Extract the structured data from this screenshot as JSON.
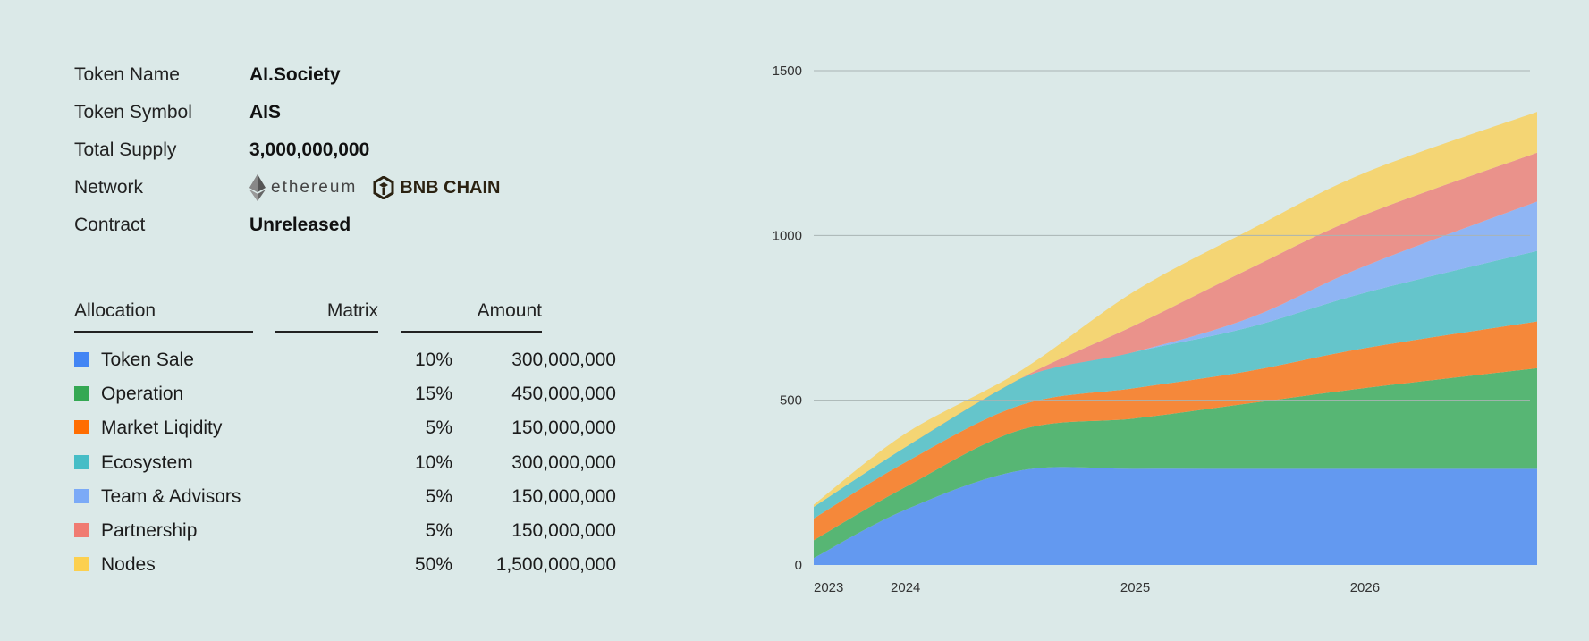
{
  "token_info": [
    {
      "label": "Token Name",
      "value": "AI.Society"
    },
    {
      "label": "Token Symbol",
      "value": "AIS"
    },
    {
      "label": "Total Supply",
      "value": "3,000,000,000"
    },
    {
      "label": "Network",
      "value": ""
    },
    {
      "label": "Contract",
      "value": "Unreleased"
    }
  ],
  "networks": {
    "ethereum": "ethereum",
    "bnb": "BNB CHAIN"
  },
  "table": {
    "headers": {
      "allocation": "Allocation",
      "matrix": "Matrix",
      "amount": "Amount"
    },
    "rows": [
      {
        "name": "Token Sale",
        "matrix": "10%",
        "amount": "300,000,000",
        "color": "#4285f4"
      },
      {
        "name": "Operation",
        "matrix": "15%",
        "amount": "450,000,000",
        "color": "#34a853"
      },
      {
        "name": "Market Liqidity",
        "matrix": "5%",
        "amount": "150,000,000",
        "color": "#ff6d01"
      },
      {
        "name": "Ecosystem",
        "matrix": "10%",
        "amount": "300,000,000",
        "color": "#46bdc6"
      },
      {
        "name": "Team & Advisors",
        "matrix": "5%",
        "amount": "150,000,000",
        "color": "#7baaf7"
      },
      {
        "name": "Partnership",
        "matrix": "5%",
        "amount": "150,000,000",
        "color": "#f07b72"
      },
      {
        "name": "Nodes",
        "matrix": "50%",
        "amount": "1,500,000,000",
        "color": "#fcd04f"
      }
    ]
  },
  "chart_data": {
    "type": "area",
    "stacked": true,
    "x": [
      2023.6,
      2024.0,
      2024.5,
      2025.0,
      2025.5,
      2026.0,
      2026.75
    ],
    "xticks": [
      {
        "value": 2023.6,
        "label": "2023"
      },
      {
        "value": 2024,
        "label": "2024"
      },
      {
        "value": 2025,
        "label": "2025"
      },
      {
        "value": 2026,
        "label": "2026"
      }
    ],
    "yticks": [
      0,
      500,
      1000,
      1500
    ],
    "ylim": [
      0,
      1500
    ],
    "grid": true,
    "series": [
      {
        "name": "Token Sale",
        "color": "#6399f0",
        "values": [
          21,
          168,
          287,
          292,
          292,
          292,
          292
        ]
      },
      {
        "name": "Operation",
        "color": "#57b674",
        "values": [
          54,
          69,
          123,
          153,
          199,
          245,
          305
        ]
      },
      {
        "name": "Market Liqidity",
        "color": "#f5883a",
        "values": [
          66,
          75,
          75,
          92,
          98,
          121,
          142
        ]
      },
      {
        "name": "Ecosystem",
        "color": "#65c5cb",
        "values": [
          35,
          46,
          81,
          110,
          133,
          168,
          214
        ]
      },
      {
        "name": "Team & Advisors",
        "color": "#8fb5f4",
        "values": [
          0,
          0,
          0,
          0,
          28,
          81,
          150
        ]
      },
      {
        "name": "Partnership",
        "color": "#ea928b",
        "values": [
          0,
          0,
          0,
          81,
          150,
          156,
          148
        ]
      },
      {
        "name": "Nodes",
        "color": "#f4d574",
        "values": [
          7,
          41,
          23,
          104,
          117,
          127,
          124
        ]
      }
    ]
  }
}
